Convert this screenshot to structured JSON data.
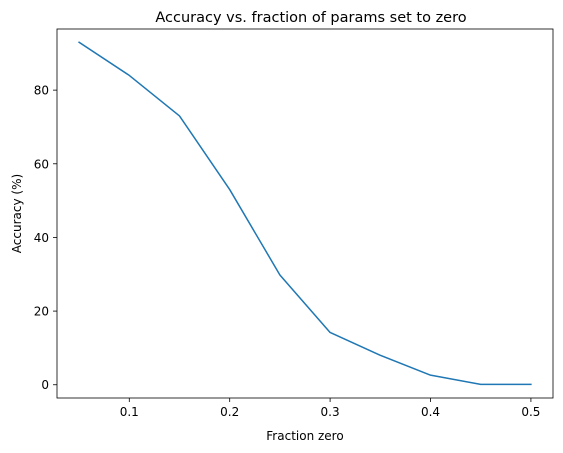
{
  "chart_data": {
    "type": "line",
    "title": "Accuracy vs. fraction of params set to zero",
    "xlabel": "Fraction zero",
    "ylabel": "Accuracy (%)",
    "xlim": [
      0.028,
      0.522
    ],
    "ylim": [
      -3.6,
      96.6
    ],
    "xticks": [
      {
        "value": 0.1,
        "label": "0.1"
      },
      {
        "value": 0.2,
        "label": "0.2"
      },
      {
        "value": 0.3,
        "label": "0.3"
      },
      {
        "value": 0.4,
        "label": "0.4"
      },
      {
        "value": 0.5,
        "label": "0.5"
      }
    ],
    "yticks": [
      {
        "value": 0,
        "label": "0"
      },
      {
        "value": 20,
        "label": "20"
      },
      {
        "value": 40,
        "label": "40"
      },
      {
        "value": 60,
        "label": "60"
      },
      {
        "value": 80,
        "label": "80"
      }
    ],
    "grid": false,
    "series": [
      {
        "color": "#1f77b4",
        "x": [
          0.05,
          0.1,
          0.15,
          0.2,
          0.25,
          0.3,
          0.35,
          0.4,
          0.45,
          0.5
        ],
        "y": [
          93.0,
          84.0,
          73.0,
          53.0,
          29.8,
          14.2,
          8.0,
          2.6,
          0.1,
          0.1
        ]
      }
    ]
  }
}
